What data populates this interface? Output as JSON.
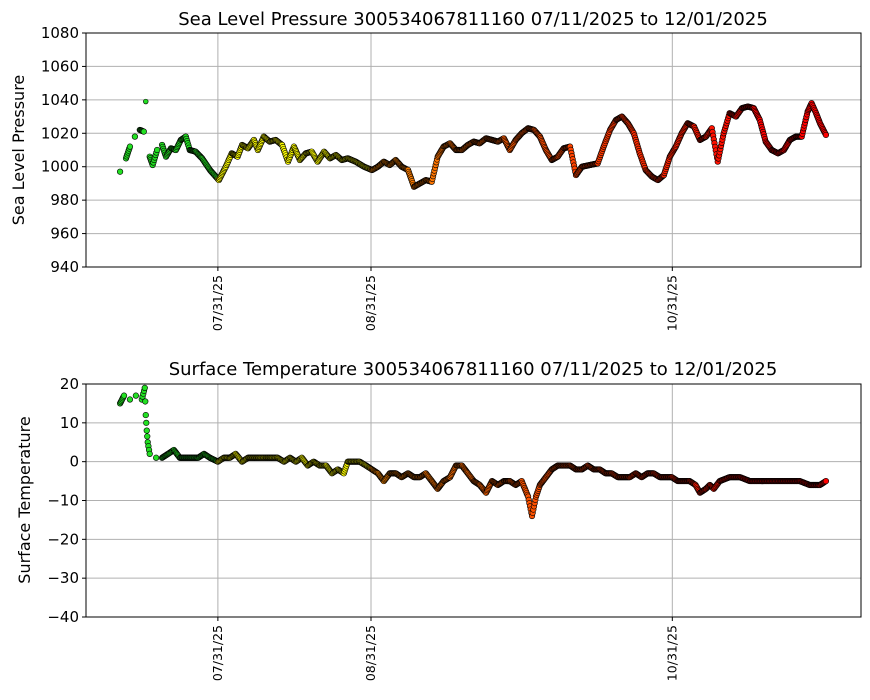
{
  "chart_data": [
    {
      "type": "scatter",
      "title": "Sea Level Pressure 300534067811160  07/11/2025 to 12/01/2025",
      "xlabel": "",
      "ylabel": "Sea Level Pressure",
      "x_unit": "days since 07/31/25",
      "xlim": [
        -26.7,
        130.2
      ],
      "ylim": [
        940,
        1080
      ],
      "yticks": [
        940,
        960,
        980,
        1000,
        1020,
        1040,
        1060,
        1080
      ],
      "xticks": [
        {
          "x": 0,
          "label": "07/31/25"
        },
        {
          "x": 31,
          "label": "08/31/25"
        },
        {
          "x": 92,
          "label": "10/31/25"
        }
      ],
      "grid": true,
      "outliers": [
        [
          -14.6,
          1039
        ]
      ],
      "points": [
        [
          -19.8,
          997
        ],
        [
          -18.6,
          1005
        ],
        [
          -17.8,
          1012
        ],
        [
          -16.8,
          1018
        ],
        [
          -15.8,
          1022
        ],
        [
          -15.0,
          1021
        ],
        [
          -13.8,
          1006
        ],
        [
          -13.2,
          1001
        ],
        [
          -12.3,
          1010
        ],
        [
          -11.3,
          1013
        ],
        [
          -10.5,
          1006
        ],
        [
          -9.5,
          1011
        ],
        [
          -8.5,
          1010
        ],
        [
          -7.5,
          1016
        ],
        [
          -6.5,
          1018
        ],
        [
          -5.7,
          1010
        ],
        [
          -4.5,
          1009
        ],
        [
          -3.2,
          1005
        ],
        [
          -1.6,
          998
        ],
        [
          0.2,
          992
        ],
        [
          1.6,
          1000
        ],
        [
          2.8,
          1008
        ],
        [
          4.0,
          1006
        ],
        [
          4.9,
          1013
        ],
        [
          6.1,
          1011
        ],
        [
          7.3,
          1016
        ],
        [
          8.1,
          1010
        ],
        [
          9.3,
          1018
        ],
        [
          10.5,
          1015
        ],
        [
          11.7,
          1016
        ],
        [
          13.0,
          1013
        ],
        [
          14.2,
          1003
        ],
        [
          15.4,
          1012
        ],
        [
          16.6,
          1004
        ],
        [
          17.8,
          1008
        ],
        [
          19.0,
          1009
        ],
        [
          20.2,
          1003
        ],
        [
          21.5,
          1009
        ],
        [
          22.7,
          1005
        ],
        [
          23.9,
          1007
        ],
        [
          25.1,
          1004
        ],
        [
          26.3,
          1005
        ],
        [
          27.9,
          1003
        ],
        [
          29.6,
          1000
        ],
        [
          31.2,
          998
        ],
        [
          32.4,
          1000
        ],
        [
          33.6,
          1003
        ],
        [
          34.8,
          1001
        ],
        [
          36.0,
          1004
        ],
        [
          37.2,
          1000
        ],
        [
          38.5,
          998
        ],
        [
          39.7,
          988
        ],
        [
          40.9,
          990
        ],
        [
          42.1,
          992
        ],
        [
          43.3,
          991
        ],
        [
          44.5,
          1006
        ],
        [
          45.7,
          1012
        ],
        [
          47.0,
          1014
        ],
        [
          48.2,
          1010
        ],
        [
          49.4,
          1010
        ],
        [
          50.6,
          1013
        ],
        [
          51.8,
          1015
        ],
        [
          53.0,
          1014
        ],
        [
          54.3,
          1017
        ],
        [
          55.5,
          1016
        ],
        [
          56.7,
          1015
        ],
        [
          57.9,
          1017
        ],
        [
          59.1,
          1010
        ],
        [
          60.3,
          1016
        ],
        [
          61.5,
          1020
        ],
        [
          62.8,
          1023
        ],
        [
          64.0,
          1022
        ],
        [
          65.2,
          1018
        ],
        [
          66.4,
          1010
        ],
        [
          67.6,
          1004
        ],
        [
          68.8,
          1006
        ],
        [
          70.0,
          1011
        ],
        [
          71.3,
          1012
        ],
        [
          72.5,
          995
        ],
        [
          73.7,
          1000
        ],
        [
          75.3,
          1001
        ],
        [
          76.9,
          1002
        ],
        [
          78.1,
          1012
        ],
        [
          79.4,
          1022
        ],
        [
          80.6,
          1028
        ],
        [
          81.8,
          1030
        ],
        [
          83.0,
          1026
        ],
        [
          84.2,
          1020
        ],
        [
          85.4,
          1008
        ],
        [
          86.6,
          998
        ],
        [
          87.9,
          994
        ],
        [
          89.1,
          992
        ],
        [
          90.3,
          995
        ],
        [
          91.5,
          1006
        ],
        [
          92.7,
          1012
        ],
        [
          93.9,
          1020
        ],
        [
          95.1,
          1026
        ],
        [
          96.4,
          1024
        ],
        [
          97.6,
          1016
        ],
        [
          98.8,
          1018
        ],
        [
          100.0,
          1023
        ],
        [
          101.2,
          1003
        ],
        [
          102.4,
          1020
        ],
        [
          103.6,
          1032
        ],
        [
          104.9,
          1030
        ],
        [
          106.1,
          1035
        ],
        [
          107.3,
          1036
        ],
        [
          108.5,
          1035
        ],
        [
          109.7,
          1028
        ],
        [
          110.9,
          1015
        ],
        [
          112.1,
          1010
        ],
        [
          113.4,
          1008
        ],
        [
          114.6,
          1010
        ],
        [
          115.8,
          1016
        ],
        [
          117.0,
          1018
        ],
        [
          118.2,
          1018
        ],
        [
          119.4,
          1033
        ],
        [
          120.2,
          1038
        ],
        [
          121.1,
          1032
        ],
        [
          121.9,
          1026
        ],
        [
          123.1,
          1019
        ]
      ]
    },
    {
      "type": "scatter",
      "title": "Surface Temperature 300534067811160  07/11/2025 to 12/01/2025",
      "xlabel": "",
      "ylabel": "Surface Temperature",
      "x_unit": "days since 07/31/25",
      "xlim": [
        -26.7,
        130.2
      ],
      "ylim": [
        -40,
        20
      ],
      "yticks": [
        -40,
        -30,
        -20,
        -10,
        0,
        10,
        20
      ],
      "xticks": [
        {
          "x": 0,
          "label": "07/31/25"
        },
        {
          "x": 31,
          "label": "08/31/25"
        },
        {
          "x": 92,
          "label": "10/31/25"
        }
      ],
      "grid": true,
      "outliers": [],
      "points": [
        [
          -19.8,
          15
        ],
        [
          -19.0,
          17
        ],
        [
          -17.8,
          16
        ],
        [
          -16.6,
          17
        ],
        [
          -15.4,
          16
        ],
        [
          -14.8,
          19
        ],
        [
          -14.6,
          12
        ],
        [
          -14.4,
          8
        ],
        [
          -14.2,
          5
        ],
        [
          -13.8,
          2
        ],
        [
          -12.5,
          1
        ],
        [
          -11.3,
          1
        ],
        [
          -10.1,
          2
        ],
        [
          -8.9,
          3
        ],
        [
          -7.7,
          1
        ],
        [
          -6.5,
          1
        ],
        [
          -5.3,
          1
        ],
        [
          -4.0,
          1
        ],
        [
          -2.8,
          2
        ],
        [
          -1.6,
          1
        ],
        [
          0.0,
          0
        ],
        [
          1.2,
          1
        ],
        [
          2.4,
          1
        ],
        [
          3.6,
          2
        ],
        [
          4.9,
          0
        ],
        [
          6.1,
          1
        ],
        [
          7.3,
          1
        ],
        [
          8.5,
          1
        ],
        [
          9.7,
          1
        ],
        [
          10.9,
          1
        ],
        [
          12.1,
          1
        ],
        [
          13.4,
          0
        ],
        [
          14.6,
          1
        ],
        [
          15.8,
          0
        ],
        [
          17.0,
          1
        ],
        [
          18.2,
          -1
        ],
        [
          19.4,
          0
        ],
        [
          20.6,
          -1
        ],
        [
          21.9,
          -1
        ],
        [
          23.1,
          -3
        ],
        [
          24.3,
          -2
        ],
        [
          25.5,
          -3
        ],
        [
          26.3,
          0
        ],
        [
          27.5,
          0
        ],
        [
          28.7,
          0
        ],
        [
          30.0,
          -1
        ],
        [
          31.2,
          -2
        ],
        [
          32.4,
          -3
        ],
        [
          33.6,
          -5
        ],
        [
          34.8,
          -3
        ],
        [
          36.0,
          -3
        ],
        [
          37.2,
          -4
        ],
        [
          38.5,
          -3
        ],
        [
          39.7,
          -4
        ],
        [
          40.9,
          -4
        ],
        [
          42.1,
          -3
        ],
        [
          43.3,
          -5
        ],
        [
          44.5,
          -7
        ],
        [
          45.7,
          -5
        ],
        [
          47.0,
          -4
        ],
        [
          48.2,
          -1
        ],
        [
          49.4,
          -1
        ],
        [
          50.6,
          -3
        ],
        [
          51.8,
          -5
        ],
        [
          53.0,
          -6
        ],
        [
          54.3,
          -8
        ],
        [
          55.5,
          -5
        ],
        [
          56.7,
          -6
        ],
        [
          57.9,
          -5
        ],
        [
          59.1,
          -5
        ],
        [
          60.3,
          -6
        ],
        [
          61.5,
          -5
        ],
        [
          62.8,
          -9
        ],
        [
          63.6,
          -14
        ],
        [
          64.4,
          -9
        ],
        [
          65.2,
          -6
        ],
        [
          66.4,
          -4
        ],
        [
          67.6,
          -2
        ],
        [
          68.8,
          -1
        ],
        [
          70.0,
          -1
        ],
        [
          71.3,
          -1
        ],
        [
          72.5,
          -2
        ],
        [
          73.7,
          -2
        ],
        [
          74.9,
          -1
        ],
        [
          76.1,
          -2
        ],
        [
          77.3,
          -2
        ],
        [
          78.5,
          -3
        ],
        [
          79.7,
          -3
        ],
        [
          81.0,
          -4
        ],
        [
          82.2,
          -4
        ],
        [
          83.4,
          -4
        ],
        [
          84.6,
          -3
        ],
        [
          85.8,
          -4
        ],
        [
          87.0,
          -3
        ],
        [
          88.2,
          -3
        ],
        [
          89.5,
          -4
        ],
        [
          90.7,
          -4
        ],
        [
          91.9,
          -4
        ],
        [
          93.1,
          -5
        ],
        [
          94.3,
          -5
        ],
        [
          95.5,
          -5
        ],
        [
          96.7,
          -6
        ],
        [
          97.6,
          -8
        ],
        [
          98.8,
          -7
        ],
        [
          99.6,
          -6
        ],
        [
          100.4,
          -7
        ],
        [
          101.6,
          -5
        ],
        [
          103.6,
          -4
        ],
        [
          105.7,
          -4
        ],
        [
          107.7,
          -5
        ],
        [
          109.7,
          -5
        ],
        [
          111.7,
          -5
        ],
        [
          113.8,
          -5
        ],
        [
          115.8,
          -5
        ],
        [
          117.8,
          -5
        ],
        [
          119.8,
          -6
        ],
        [
          121.9,
          -6
        ],
        [
          123.1,
          -5
        ]
      ]
    }
  ],
  "colors": {
    "green": "#22e022",
    "yellow": "#ffff00",
    "orange": "#ff8c00",
    "red": "#ff0000",
    "edge": "#000000",
    "grid": "#b0b0b0"
  }
}
